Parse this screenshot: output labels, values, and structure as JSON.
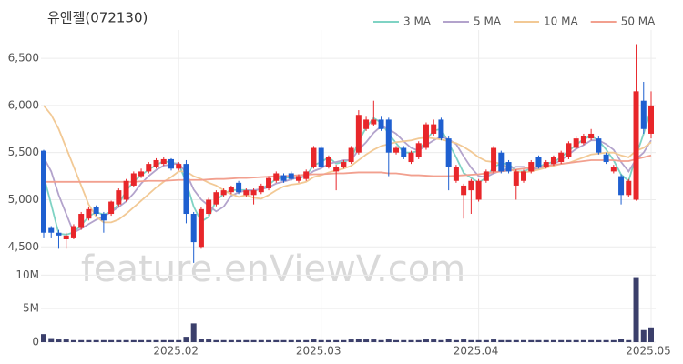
{
  "chart_data": {
    "type": "candlestick",
    "title": "유엔젤(072130)",
    "watermark": "feature.enViewV.com",
    "up_color": "#e8262a",
    "down_color": "#1e5fd0",
    "volume_color": "#3b3f6b",
    "grid": true,
    "legend": "top-right",
    "categories": [
      null,
      null,
      null,
      null,
      null,
      null,
      null,
      null,
      null,
      null,
      null,
      null,
      null,
      null,
      null,
      null,
      null,
      null,
      "2025.02",
      null,
      null,
      null,
      null,
      null,
      null,
      null,
      null,
      null,
      null,
      null,
      null,
      null,
      null,
      null,
      null,
      null,
      null,
      "2025.03",
      null,
      null,
      null,
      null,
      null,
      null,
      null,
      null,
      null,
      null,
      null,
      null,
      null,
      null,
      null,
      null,
      null,
      null,
      null,
      null,
      "2025.04",
      null,
      null,
      null,
      null,
      null,
      null,
      null,
      null,
      null,
      null,
      null,
      null,
      null,
      null,
      null,
      null,
      null,
      null,
      null,
      null,
      null,
      null,
      "2025.05"
    ],
    "open": [
      5520,
      4700,
      4650,
      4580,
      4600,
      4700,
      4800,
      4920,
      4850,
      4850,
      4950,
      5000,
      5150,
      5250,
      5300,
      5350,
      5380,
      5430,
      5330,
      5380,
      4850,
      4500,
      4850,
      4950,
      5050,
      5080,
      5180,
      5050,
      5050,
      5080,
      5120,
      5200,
      5260,
      5280,
      5200,
      5220,
      5350,
      5550,
      5350,
      5300,
      5350,
      5400,
      5500,
      5750,
      5800,
      5850,
      5850,
      5500,
      5550,
      5400,
      5450,
      5550,
      5700,
      5850,
      5650,
      5200,
      5050,
      5100,
      5000,
      5200,
      5300,
      5500,
      5400,
      5150,
      5200,
      5300,
      5450,
      5350,
      5380,
      5400,
      5450,
      5550,
      5600,
      5650,
      5650,
      5480,
      5300,
      5250,
      5050,
      5000,
      6050,
      5700
    ],
    "high": [
      5530,
      4720,
      4680,
      4650,
      4740,
      4870,
      4920,
      4940,
      4870,
      4990,
      5120,
      5220,
      5300,
      5330,
      5400,
      5440,
      5450,
      5440,
      5400,
      5420,
      4870,
      4920,
      5020,
      5100,
      5120,
      5150,
      5200,
      5120,
      5120,
      5170,
      5250,
      5300,
      5280,
      5300,
      5270,
      5320,
      5570,
      5570,
      5470,
      5370,
      5420,
      5570,
      5950,
      5880,
      6050,
      5880,
      5870,
      5570,
      5570,
      5520,
      5620,
      5820,
      5850,
      5870,
      5670,
      5370,
      5170,
      5220,
      5220,
      5320,
      5570,
      5520,
      5420,
      5320,
      5320,
      5420,
      5470,
      5420,
      5470,
      5520,
      5620,
      5670,
      5700,
      5750,
      5670,
      5500,
      5370,
      5270,
      5220,
      6650,
      6250,
      6150
    ],
    "low": [
      4600,
      4600,
      4480,
      4480,
      4580,
      4680,
      4780,
      4830,
      4650,
      4830,
      4930,
      4980,
      5130,
      5230,
      5280,
      5330,
      5360,
      5310,
      5310,
      4750,
      4330,
      4480,
      4830,
      4930,
      5030,
      5060,
      5060,
      5030,
      4950,
      5060,
      5100,
      5180,
      5180,
      5200,
      5180,
      5200,
      5330,
      5330,
      5330,
      5100,
      5330,
      5380,
      5480,
      5730,
      5780,
      5730,
      5250,
      5480,
      5430,
      5380,
      5430,
      5530,
      5680,
      5630,
      5100,
      5180,
      4800,
      4850,
      4980,
      5180,
      5280,
      5280,
      5280,
      5000,
      5180,
      5280,
      5330,
      5330,
      5360,
      5380,
      5430,
      5530,
      5580,
      5630,
      5480,
      5380,
      5280,
      4950,
      5030,
      4990,
      5700,
      5650
    ],
    "close": [
      4650,
      4650,
      4620,
      4620,
      4720,
      4850,
      4900,
      4850,
      4780,
      4980,
      5100,
      5200,
      5280,
      5300,
      5380,
      5420,
      5430,
      5330,
      5380,
      4850,
      4550,
      4900,
      5000,
      5080,
      5100,
      5130,
      5080,
      5100,
      5100,
      5150,
      5230,
      5280,
      5200,
      5220,
      5250,
      5300,
      5550,
      5350,
      5450,
      5350,
      5400,
      5550,
      5900,
      5850,
      5850,
      5750,
      5500,
      5550,
      5450,
      5500,
      5600,
      5800,
      5800,
      5650,
      5350,
      5350,
      5150,
      5200,
      5200,
      5300,
      5550,
      5300,
      5300,
      5300,
      5300,
      5400,
      5350,
      5400,
      5450,
      5500,
      5600,
      5650,
      5680,
      5700,
      5500,
      5400,
      5350,
      5050,
      5200,
      6150,
      5750,
      6000
    ],
    "volume": [
      1200000,
      600000,
      400000,
      400000,
      300000,
      300000,
      300000,
      300000,
      300000,
      300000,
      300000,
      300000,
      300000,
      300000,
      300000,
      300000,
      300000,
      300000,
      300000,
      800000,
      2800000,
      500000,
      400000,
      300000,
      300000,
      300000,
      300000,
      300000,
      300000,
      300000,
      300000,
      300000,
      300000,
      300000,
      300000,
      300000,
      400000,
      300000,
      300000,
      300000,
      300000,
      400000,
      500000,
      400000,
      400000,
      300000,
      400000,
      300000,
      300000,
      300000,
      300000,
      400000,
      400000,
      300000,
      500000,
      300000,
      400000,
      300000,
      300000,
      300000,
      400000,
      300000,
      300000,
      300000,
      300000,
      300000,
      300000,
      300000,
      300000,
      300000,
      300000,
      300000,
      300000,
      300000,
      300000,
      300000,
      300000,
      500000,
      300000,
      9700000,
      1800000,
      2200000
    ],
    "series": [
      {
        "name": "3 MA",
        "color": "#7fd3c4",
        "values": [
          5250,
          4950,
          4640,
          4630,
          4653,
          4730,
          4823,
          4867,
          4843,
          4870,
          4953,
          5093,
          5193,
          5260,
          5320,
          5367,
          5410,
          5393,
          5380,
          5187,
          4927,
          4767,
          4817,
          4993,
          5060,
          5103,
          5103,
          5103,
          5093,
          5117,
          5160,
          5220,
          5237,
          5233,
          5223,
          5257,
          5367,
          5400,
          5450,
          5383,
          5400,
          5433,
          5617,
          5767,
          5867,
          5817,
          5700,
          5600,
          5500,
          5500,
          5517,
          5633,
          5733,
          5750,
          5600,
          5450,
          5283,
          5233,
          5183,
          5233,
          5350,
          5383,
          5383,
          5300,
          5300,
          5333,
          5350,
          5383,
          5400,
          5450,
          5517,
          5583,
          5643,
          5677,
          5627,
          5533,
          5417,
          5267,
          5200,
          5467,
          5700,
          5967
        ]
      },
      {
        "name": "5 MA",
        "color": "#b3a3cc",
        "values": [
          5450,
          5300,
          5050,
          4850,
          4652,
          4692,
          4742,
          4788,
          4820,
          4872,
          4922,
          4982,
          5068,
          5172,
          5252,
          5316,
          5362,
          5372,
          5388,
          5282,
          5108,
          5002,
          4936,
          4876,
          4926,
          5042,
          5078,
          5098,
          5102,
          5112,
          5132,
          5172,
          5192,
          5216,
          5236,
          5250,
          5304,
          5334,
          5380,
          5400,
          5420,
          5420,
          5530,
          5610,
          5710,
          5780,
          5750,
          5700,
          5620,
          5550,
          5520,
          5580,
          5630,
          5670,
          5640,
          5590,
          5460,
          5340,
          5250,
          5240,
          5280,
          5310,
          5330,
          5350,
          5350,
          5320,
          5330,
          5350,
          5380,
          5420,
          5480,
          5540,
          5580,
          5630,
          5630,
          5590,
          5530,
          5400,
          5300,
          5430,
          5500,
          5630
        ]
      },
      {
        "name": "10 MA",
        "color": "#f2c995",
        "values": [
          6000,
          5900,
          5750,
          5550,
          5350,
          5150,
          4950,
          4820,
          4760,
          4760,
          4790,
          4850,
          4920,
          4990,
          5060,
          5130,
          5190,
          5240,
          5300,
          5300,
          5250,
          5220,
          5180,
          5150,
          5100,
          5060,
          5030,
          5050,
          5020,
          5010,
          5050,
          5100,
          5140,
          5160,
          5170,
          5190,
          5240,
          5260,
          5290,
          5310,
          5330,
          5360,
          5420,
          5480,
          5530,
          5570,
          5590,
          5610,
          5620,
          5630,
          5650,
          5660,
          5650,
          5640,
          5620,
          5600,
          5560,
          5510,
          5450,
          5410,
          5400,
          5380,
          5330,
          5300,
          5290,
          5300,
          5320,
          5340,
          5360,
          5380,
          5390,
          5420,
          5450,
          5480,
          5490,
          5500,
          5500,
          5470,
          5450,
          5520,
          5550,
          5610
        ]
      },
      {
        "name": "50 MA",
        "color": "#f2a08f",
        "values": [
          5190,
          5190,
          5190,
          5190,
          5190,
          5190,
          5190,
          5190,
          5190,
          5190,
          5190,
          5190,
          5190,
          5195,
          5200,
          5200,
          5200,
          5205,
          5210,
          5210,
          5210,
          5210,
          5215,
          5220,
          5220,
          5225,
          5230,
          5230,
          5235,
          5240,
          5245,
          5250,
          5250,
          5255,
          5260,
          5265,
          5270,
          5270,
          5275,
          5280,
          5280,
          5285,
          5290,
          5290,
          5290,
          5290,
          5280,
          5280,
          5270,
          5260,
          5260,
          5255,
          5250,
          5250,
          5250,
          5255,
          5260,
          5265,
          5270,
          5280,
          5290,
          5300,
          5310,
          5320,
          5330,
          5340,
          5350,
          5360,
          5370,
          5380,
          5390,
          5400,
          5410,
          5420,
          5420,
          5420,
          5420,
          5410,
          5410,
          5430,
          5450,
          5470
        ]
      }
    ],
    "ylim": [
      4300,
      6800
    ],
    "yticks": [
      {
        "value": 4500,
        "label": "4,500"
      },
      {
        "value": 5000,
        "label": "5,000"
      },
      {
        "value": 5500,
        "label": "5,500"
      },
      {
        "value": 6000,
        "label": "6,000"
      },
      {
        "value": 6500,
        "label": "6,500"
      }
    ],
    "volume_ylim": [
      0,
      11000000
    ],
    "volume_yticks": [
      {
        "value": 0,
        "label": "0"
      },
      {
        "value": 5000000,
        "label": "5M"
      },
      {
        "value": 10000000,
        "label": "10M"
      }
    ]
  }
}
